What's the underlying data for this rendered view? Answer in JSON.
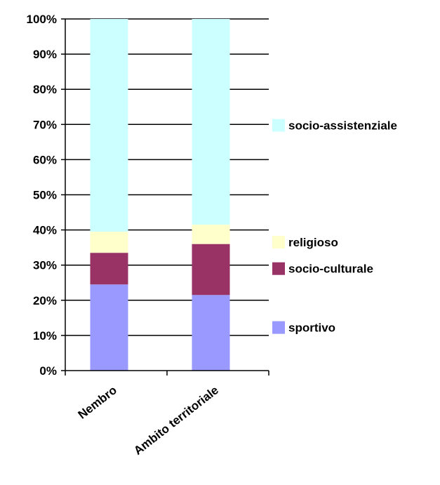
{
  "chart_data": {
    "type": "bar",
    "stacked": true,
    "normalized": true,
    "categories": [
      "Nembro",
      "Ambito territoriale"
    ],
    "series": [
      {
        "name": "sportivo",
        "values": [
          24.5,
          21.5
        ],
        "color": "#9999ff"
      },
      {
        "name": "socio-culturale",
        "values": [
          9,
          14.5
        ],
        "color": "#993366"
      },
      {
        "name": "religioso",
        "values": [
          6,
          5.5
        ],
        "color": "#ffffcc"
      },
      {
        "name": "socio-assistenziale",
        "values": [
          60.5,
          58.5
        ],
        "color": "#ccffff"
      }
    ],
    "yticks": [
      "0%",
      "10%",
      "20%",
      "30%",
      "40%",
      "50%",
      "60%",
      "70%",
      "80%",
      "90%",
      "100%"
    ],
    "ylim": [
      0,
      100
    ],
    "grid": true,
    "legend": "right"
  }
}
